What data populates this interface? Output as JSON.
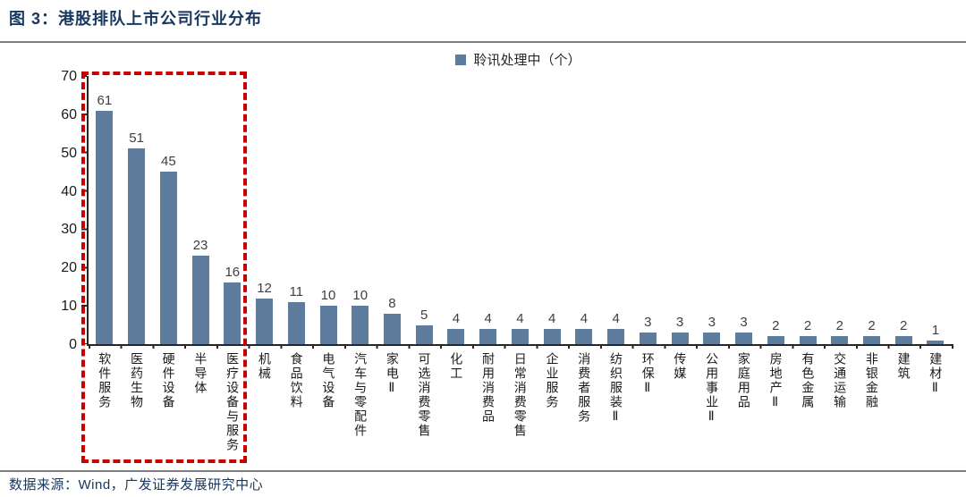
{
  "title": "图 3：港股排队上市公司行业分布",
  "footer": {
    "source": "数据来源：Wind，广发证券发展研究中心"
  },
  "colors": {
    "title_text": "#17375E",
    "bar": "#5E7D9D",
    "highlight_dash": "#C90000",
    "axis": "#262626",
    "value_label": "#3F3F3F"
  },
  "chart_data": {
    "type": "bar",
    "title": "港股排队上市公司行业分布",
    "legend": "聆讯处理中（个）",
    "legend_position": "top-center",
    "grid": false,
    "ylim": [
      0,
      70
    ],
    "ytick_step": 10,
    "yticks": [
      0,
      10,
      20,
      30,
      40,
      50,
      60,
      70
    ],
    "xlabel": "",
    "ylabel": "",
    "highlight_first_n": 5,
    "categories": [
      "软件服务",
      "医药生物",
      "硬件设备",
      "半导体",
      "医疗设备与服务",
      "机械",
      "食品饮料",
      "电气设备",
      "汽车与零配件",
      "家电Ⅱ",
      "可选消费零售",
      "化工",
      "耐用消费品",
      "日常消费零售",
      "企业服务",
      "消费者服务",
      "纺织服装Ⅱ",
      "环保Ⅱ",
      "传媒",
      "公用事业Ⅱ",
      "家庭用品",
      "房地产Ⅱ",
      "有色金属",
      "交通运输",
      "非银金融",
      "建筑",
      "建材Ⅱ"
    ],
    "values": [
      61,
      51,
      45,
      23,
      16,
      12,
      11,
      10,
      10,
      8,
      5,
      4,
      4,
      4,
      4,
      4,
      4,
      3,
      3,
      3,
      3,
      2,
      2,
      2,
      2,
      2,
      1
    ]
  }
}
